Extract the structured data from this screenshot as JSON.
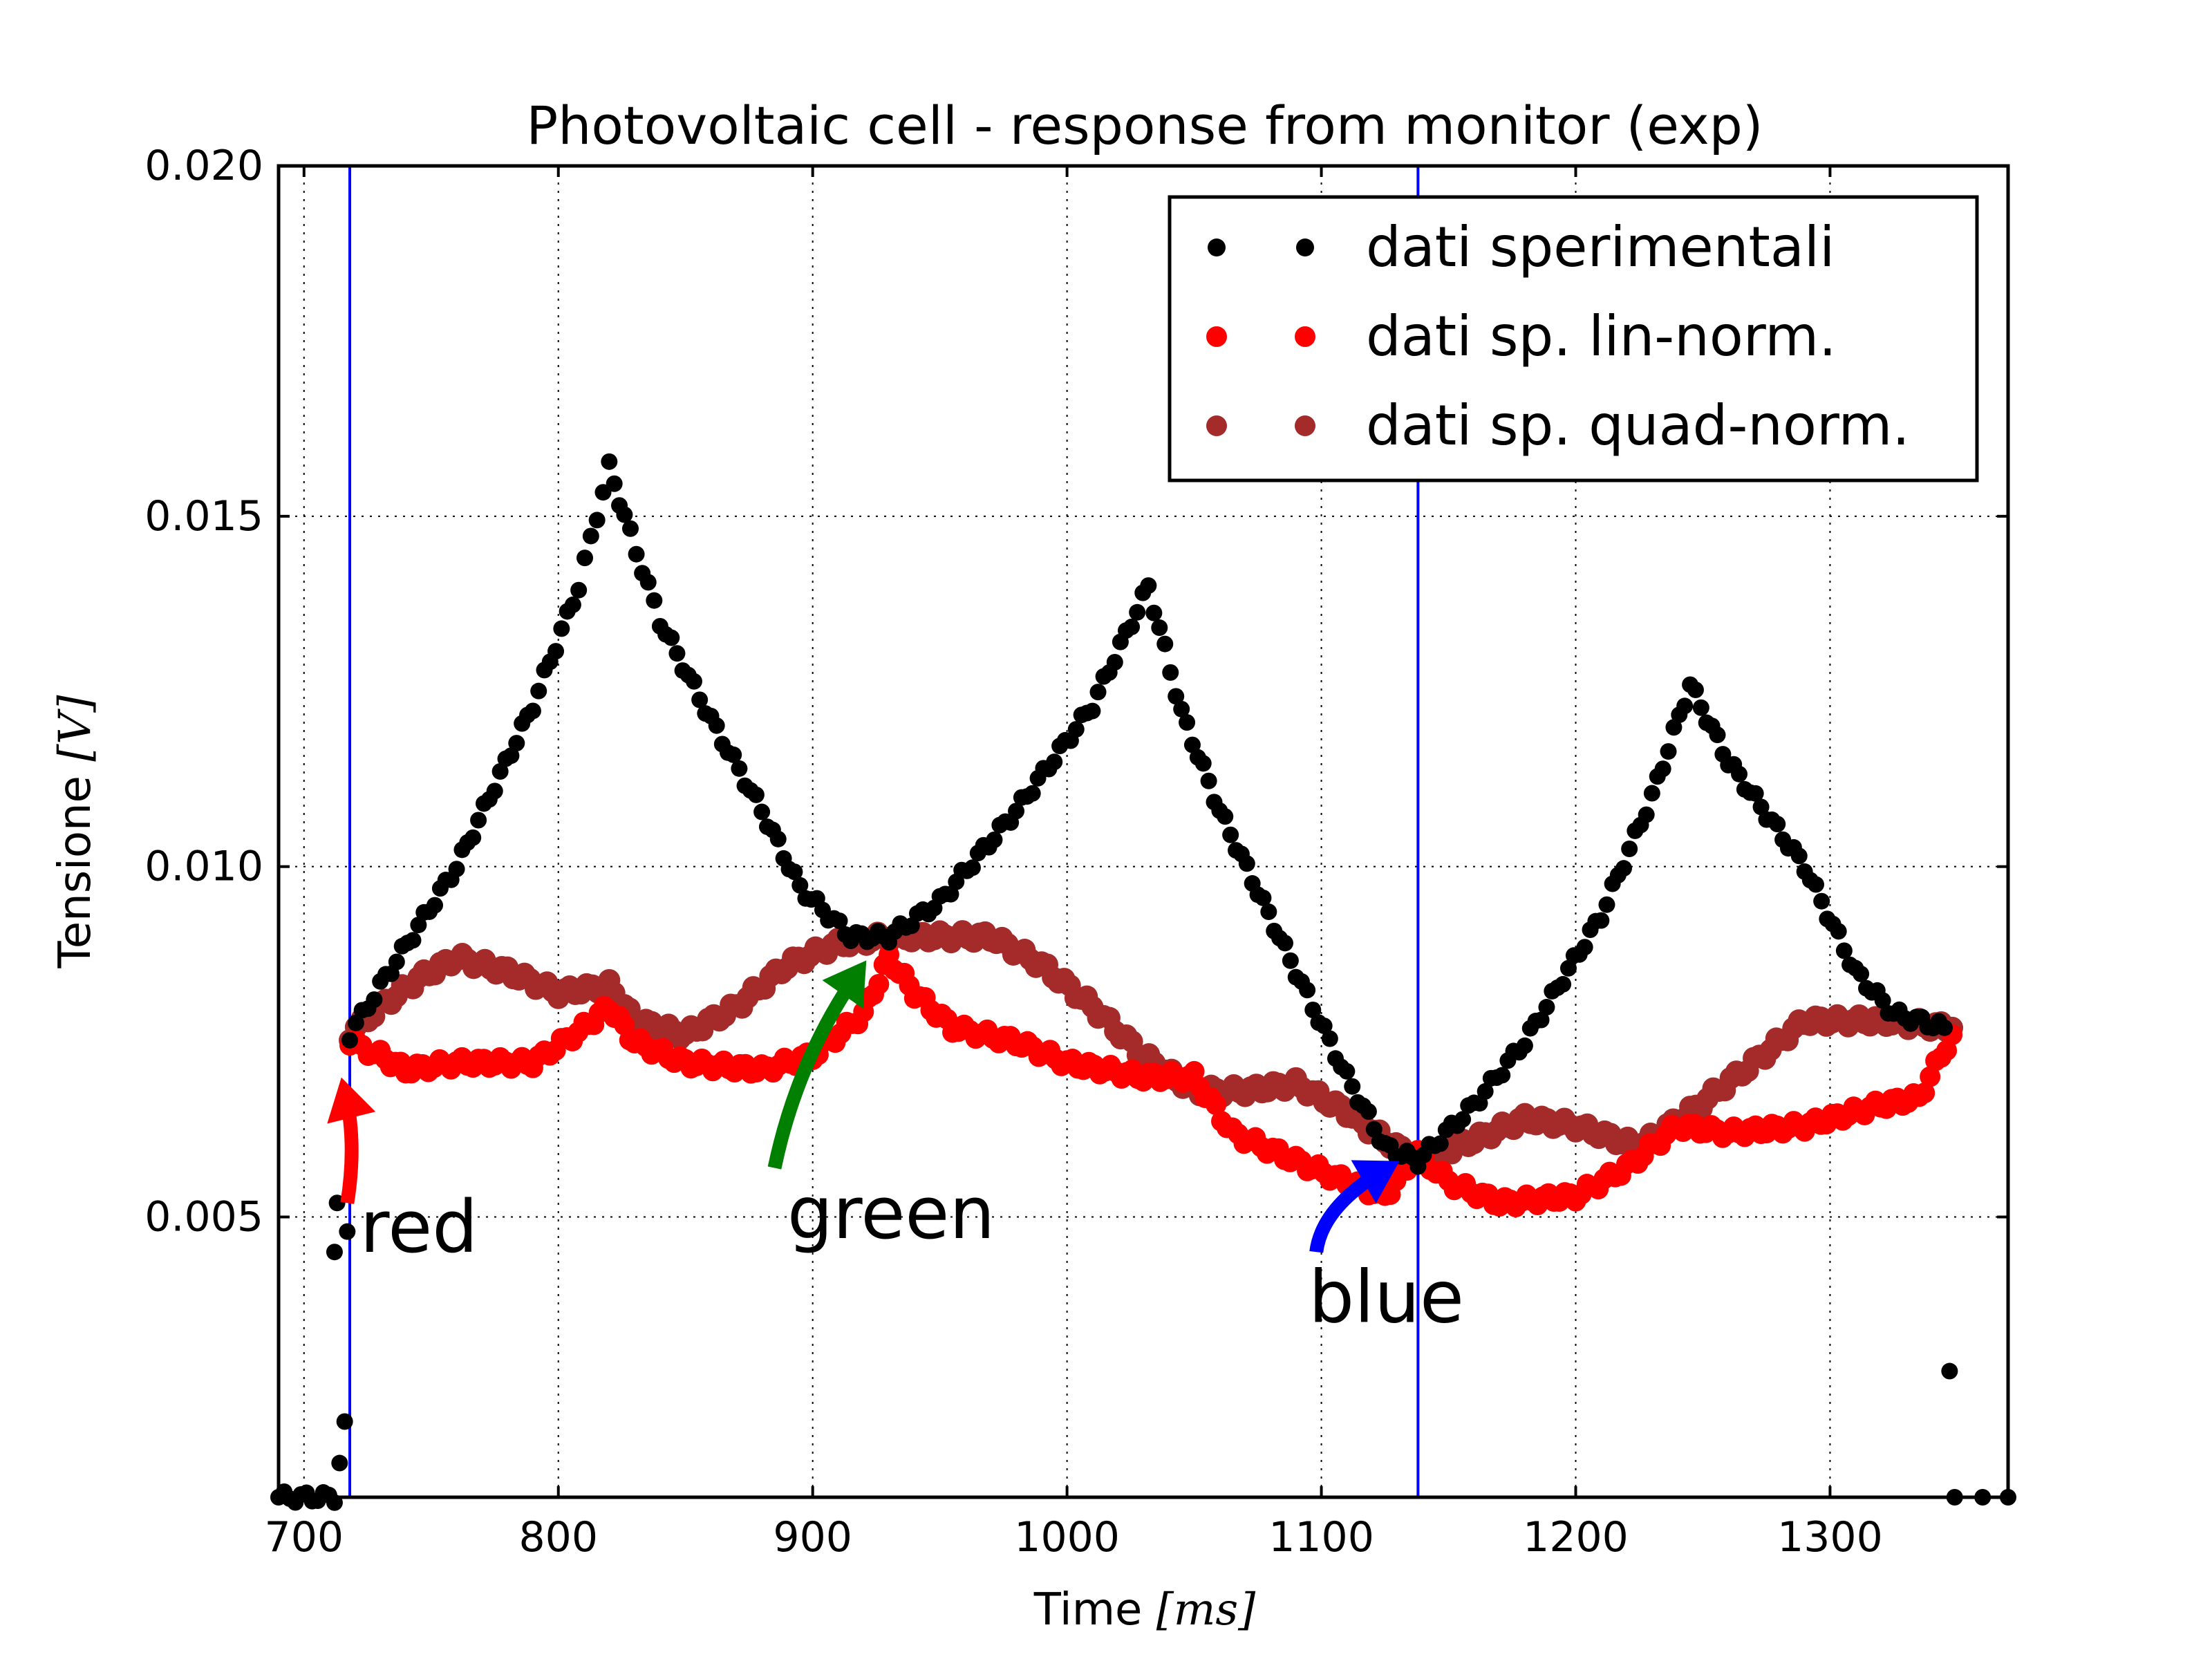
{
  "chart_data": {
    "type": "scatter",
    "title": "Photovoltaic cell - response from monitor (exp)",
    "xlabel": "Time",
    "xlabel_unit": "[ms]",
    "ylabel": "Tensione",
    "ylabel_unit": "[V]",
    "xlim": [
      690,
      1370
    ],
    "ylim": [
      0.001,
      0.02
    ],
    "grid": true,
    "legend_position": "top-right",
    "x_ticks": [
      700,
      800,
      900,
      1000,
      1100,
      1200,
      1300
    ],
    "x_tick_labels": [
      "700",
      "800",
      "900",
      "1000",
      "1100",
      "1200",
      "1300"
    ],
    "y_ticks": [
      0.005,
      0.01,
      0.015,
      0.02
    ],
    "y_tick_labels": [
      "0.005",
      "0.010",
      "0.015",
      "0.020"
    ],
    "vlines": [
      {
        "x": 718,
        "color": "#0000ff"
      },
      {
        "x": 1138,
        "color": "#0000ff"
      }
    ],
    "series": [
      {
        "name": "dati sperimentali",
        "color": "#000000",
        "anchors": [
          [
            690,
            0.001
          ],
          [
            712,
            0.001
          ],
          [
            716,
            0.002
          ],
          [
            718,
            0.0076
          ],
          [
            730,
            0.0083
          ],
          [
            760,
            0.01
          ],
          [
            790,
            0.0123
          ],
          [
            808,
            0.014
          ],
          [
            820,
            0.0157
          ],
          [
            826,
            0.015
          ],
          [
            840,
            0.0135
          ],
          [
            860,
            0.0121
          ],
          [
            880,
            0.0108
          ],
          [
            895,
            0.0097
          ],
          [
            915,
            0.009
          ],
          [
            930,
            0.009
          ],
          [
            950,
            0.0095
          ],
          [
            980,
            0.0108
          ],
          [
            1010,
            0.0123
          ],
          [
            1032,
            0.014
          ],
          [
            1045,
            0.0122
          ],
          [
            1060,
            0.0108
          ],
          [
            1090,
            0.0085
          ],
          [
            1110,
            0.007
          ],
          [
            1125,
            0.006
          ],
          [
            1138,
            0.0058
          ],
          [
            1160,
            0.0066
          ],
          [
            1180,
            0.0075
          ],
          [
            1210,
            0.0093
          ],
          [
            1230,
            0.011
          ],
          [
            1245,
            0.0126
          ],
          [
            1260,
            0.0115
          ],
          [
            1290,
            0.01
          ],
          [
            1310,
            0.0085
          ],
          [
            1325,
            0.0079
          ],
          [
            1345,
            0.0077
          ]
        ],
        "extra_points": [
          [
            712,
            0.0045
          ],
          [
            713,
            0.0052
          ],
          [
            1347,
            0.0028
          ],
          [
            1349,
            0.001
          ],
          [
            1360,
            0.001
          ],
          [
            1370,
            0.001
          ]
        ]
      },
      {
        "name": "dati sp. lin-norm.",
        "color": "#ff0000",
        "anchors": [
          [
            718,
            0.0075
          ],
          [
            730,
            0.0073
          ],
          [
            740,
            0.0071
          ],
          [
            760,
            0.0072
          ],
          [
            790,
            0.0072
          ],
          [
            810,
            0.0077
          ],
          [
            820,
            0.008
          ],
          [
            830,
            0.0075
          ],
          [
            850,
            0.0072
          ],
          [
            880,
            0.0071
          ],
          [
            900,
            0.0073
          ],
          [
            920,
            0.0079
          ],
          [
            930,
            0.0087
          ],
          [
            940,
            0.0082
          ],
          [
            955,
            0.0077
          ],
          [
            980,
            0.0075
          ],
          [
            1000,
            0.0072
          ],
          [
            1030,
            0.007
          ],
          [
            1050,
            0.007
          ],
          [
            1065,
            0.0062
          ],
          [
            1090,
            0.0058
          ],
          [
            1110,
            0.0055
          ],
          [
            1125,
            0.0053
          ],
          [
            1138,
            0.0059
          ],
          [
            1150,
            0.0055
          ],
          [
            1170,
            0.0052
          ],
          [
            1200,
            0.0053
          ],
          [
            1220,
            0.0057
          ],
          [
            1240,
            0.0063
          ],
          [
            1260,
            0.0062
          ],
          [
            1290,
            0.0063
          ],
          [
            1320,
            0.0066
          ],
          [
            1335,
            0.0067
          ],
          [
            1348,
            0.0076
          ]
        ]
      },
      {
        "name": "dati sp. quad-norm.",
        "color": "#a52a2a",
        "anchors": [
          [
            718,
            0.0076
          ],
          [
            730,
            0.008
          ],
          [
            745,
            0.0084
          ],
          [
            760,
            0.0087
          ],
          [
            780,
            0.0085
          ],
          [
            800,
            0.0082
          ],
          [
            820,
            0.0083
          ],
          [
            830,
            0.0078
          ],
          [
            850,
            0.0076
          ],
          [
            870,
            0.008
          ],
          [
            890,
            0.0086
          ],
          [
            910,
            0.0089
          ],
          [
            930,
            0.009
          ],
          [
            950,
            0.009
          ],
          [
            970,
            0.009
          ],
          [
            990,
            0.0086
          ],
          [
            1010,
            0.008
          ],
          [
            1030,
            0.0073
          ],
          [
            1050,
            0.0068
          ],
          [
            1070,
            0.0068
          ],
          [
            1090,
            0.0069
          ],
          [
            1110,
            0.0065
          ],
          [
            1125,
            0.0061
          ],
          [
            1138,
            0.0058
          ],
          [
            1160,
            0.0061
          ],
          [
            1180,
            0.0064
          ],
          [
            1200,
            0.0063
          ],
          [
            1225,
            0.006
          ],
          [
            1245,
            0.0065
          ],
          [
            1270,
            0.0072
          ],
          [
            1290,
            0.0078
          ],
          [
            1320,
            0.0078
          ],
          [
            1348,
            0.0077
          ]
        ]
      }
    ],
    "annotations": [
      {
        "text": "red",
        "arrow_color": "#ff0000",
        "text_xy": [
          722,
          0.0045
        ],
        "arrow_from": [
          717,
          0.0052
        ],
        "arrow_to": [
          716,
          0.0068
        ]
      },
      {
        "text": "green",
        "arrow_color": "#007f00",
        "text_xy": [
          890,
          0.0047
        ],
        "arrow_from": [
          885,
          0.0057
        ],
        "arrow_to": [
          918,
          0.0085
        ]
      },
      {
        "text": "blue",
        "arrow_color": "#0000ff",
        "text_xy": [
          1095,
          0.0035
        ],
        "arrow_from": [
          1098,
          0.0045
        ],
        "arrow_to": [
          1126,
          0.0057
        ]
      }
    ]
  }
}
